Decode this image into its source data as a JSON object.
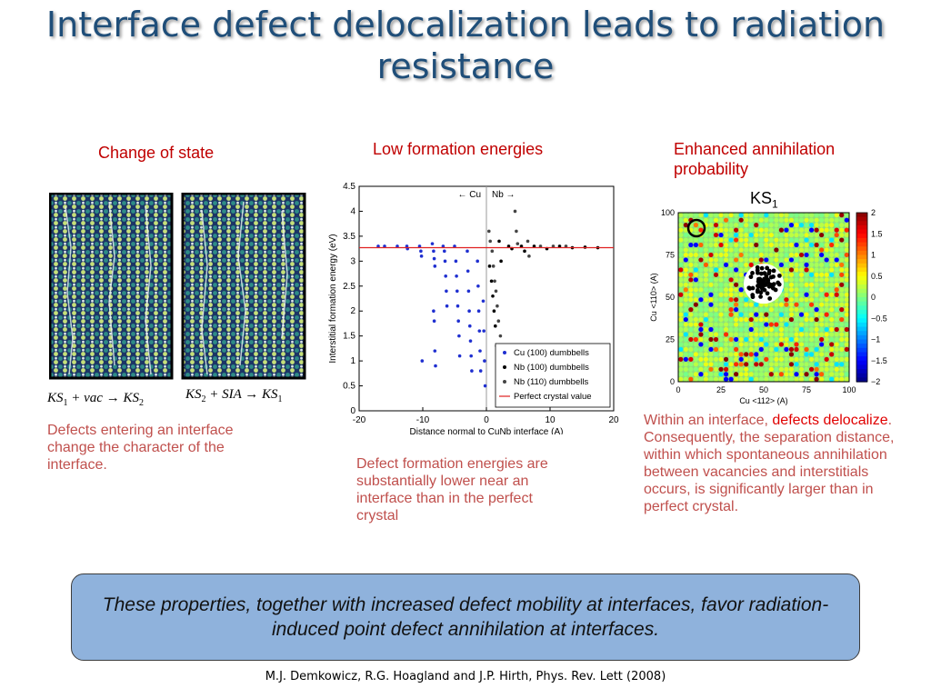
{
  "title": "Interface defect delocalization leads to radiation resistance",
  "columns": {
    "left": {
      "heading": "Change of state",
      "eq1": {
        "a": "KS",
        "a_sub": "1",
        "op1": " + ",
        "b": "vac",
        "arrow": " → ",
        "c": "KS",
        "c_sub": "2"
      },
      "eq2": {
        "a": "KS",
        "a_sub": "2",
        "op1": " + ",
        "b": "SIA",
        "arrow": " → ",
        "c": "KS",
        "c_sub": "1"
      },
      "caption": "Defects entering an interface change the character of the interface."
    },
    "middle": {
      "heading": "Low formation energies",
      "caption": "Defect formation energies are substantially lower near an interface than in the perfect crystal"
    },
    "right": {
      "heading_line1": "Enhanced annihilation",
      "heading_line2": "probability",
      "ks_label": "KS",
      "ks_sub": "1",
      "caption_part1": "Within an interface, ",
      "caption_highlight": "defects delocalize",
      "caption_part2": ". Consequently, the separation distance, within which spontaneous annihilation between vacancies and interstitials occurs, is significantly larger than in perfect crystal."
    }
  },
  "chart_data": {
    "type": "scatter",
    "xlabel": "Distance normal to CuNb interface (A)",
    "ylabel": "Interstitial formation energy (eV)",
    "xlim": [
      -20,
      20
    ],
    "ylim": [
      0,
      4.5
    ],
    "xticks": [
      "-20",
      "-10",
      "0",
      "10",
      "20"
    ],
    "yticks": [
      "0",
      "0.5",
      "1",
      "1.5",
      "2",
      "2.5",
      "3",
      "3.5",
      "4",
      "4.5"
    ],
    "region_labels": [
      "← Cu",
      "Nb →"
    ],
    "perfect_crystal_value": 3.27,
    "legend_position": "bottom-right",
    "series": [
      {
        "name": "Cu (100) dumbbells",
        "color": "#1f2fd0",
        "values": [
          [
            -17,
            3.3
          ],
          [
            -16,
            3.3
          ],
          [
            -14,
            3.3
          ],
          [
            -12.5,
            3.3
          ],
          [
            -12.4,
            3.25
          ],
          [
            -10.5,
            3.3
          ],
          [
            -10.3,
            3.2
          ],
          [
            -10.2,
            3.1
          ],
          [
            -8.5,
            3.35
          ],
          [
            -8.3,
            3.2
          ],
          [
            -8.2,
            3.05
          ],
          [
            -8.1,
            2.9
          ],
          [
            -6.8,
            3.3
          ],
          [
            -6.6,
            3.2
          ],
          [
            -6.5,
            3.0
          ],
          [
            -6.4,
            2.7
          ],
          [
            -6.3,
            2.4
          ],
          [
            -6.2,
            2.1
          ],
          [
            -5,
            3.3
          ],
          [
            -4.8,
            3.0
          ],
          [
            -4.7,
            2.7
          ],
          [
            -4.6,
            2.4
          ],
          [
            -4.5,
            2.1
          ],
          [
            -4.4,
            1.8
          ],
          [
            -4.3,
            1.5
          ],
          [
            -4.2,
            1.1
          ],
          [
            -3,
            3.2
          ],
          [
            -2.9,
            2.8
          ],
          [
            -2.8,
            2.4
          ],
          [
            -2.7,
            2.0
          ],
          [
            -2.6,
            1.7
          ],
          [
            -2.5,
            1.4
          ],
          [
            -2.4,
            1.1
          ],
          [
            -2.3,
            0.8
          ],
          [
            -1.4,
            3.0
          ],
          [
            -1.3,
            2.5
          ],
          [
            -1.2,
            2.0
          ],
          [
            -1.1,
            1.6
          ],
          [
            -1.0,
            1.2
          ],
          [
            -0.9,
            0.8
          ],
          [
            -0.5,
            2.2
          ],
          [
            -0.4,
            1.6
          ],
          [
            -0.3,
            1.0
          ],
          [
            -0.2,
            0.5
          ],
          [
            -8.3,
            2.0
          ],
          [
            -8.2,
            1.8
          ],
          [
            -8.1,
            1.2
          ],
          [
            -10.1,
            1.0
          ],
          [
            -8.0,
            0.9
          ]
        ]
      },
      {
        "name": "Nb (100) dumbbells",
        "color": "#000000",
        "values": [
          [
            0.5,
            2.9
          ],
          [
            0.8,
            2.6
          ],
          [
            1.0,
            2.3
          ],
          [
            1.2,
            2.0
          ],
          [
            1.4,
            1.7
          ],
          [
            1.6,
            1.3
          ],
          [
            2.0,
            3.4
          ],
          [
            2.3,
            3.0
          ],
          [
            3.5,
            3.3
          ],
          [
            4.0,
            3.25
          ],
          [
            5.5,
            3.3
          ],
          [
            6.0,
            3.2
          ],
          [
            7.5,
            3.3
          ],
          [
            9.5,
            3.25
          ],
          [
            11.5,
            3.3
          ],
          [
            13.5,
            3.27
          ],
          [
            15.5,
            3.28
          ],
          [
            17.5,
            3.27
          ]
        ]
      },
      {
        "name": "Nb (110) dumbbells",
        "color": "#444444",
        "values": [
          [
            0.4,
            3.6
          ],
          [
            0.6,
            3.4
          ],
          [
            0.9,
            3.2
          ],
          [
            1.1,
            2.9
          ],
          [
            1.3,
            2.6
          ],
          [
            1.5,
            2.4
          ],
          [
            1.7,
            2.1
          ],
          [
            1.9,
            1.8
          ],
          [
            2.2,
            1.5
          ],
          [
            1.8,
            1.1
          ],
          [
            2.0,
            1.0
          ],
          [
            4.5,
            4.0
          ],
          [
            4.7,
            3.6
          ],
          [
            4.9,
            3.35
          ],
          [
            6.5,
            3.4
          ],
          [
            6.7,
            3.1
          ],
          [
            8.5,
            3.3
          ],
          [
            10.5,
            3.3
          ],
          [
            12.5,
            3.3
          ]
        ]
      },
      {
        "name": "Perfect crystal value",
        "color": "#e02020",
        "values": [
          [
            -20,
            3.27
          ],
          [
            20,
            3.27
          ]
        ]
      }
    ]
  },
  "heatmap": {
    "xlabel": "Cu <112> (A)",
    "ylabel": "Cu <110> (A)",
    "xticks": [
      "0",
      "25",
      "50",
      "75",
      "100"
    ],
    "yticks": [
      "0",
      "25",
      "50",
      "75",
      "100"
    ],
    "colorbar_ticks": [
      "2",
      "1.5",
      "1",
      "0.5",
      "0",
      "−0.5",
      "−1",
      "−1.5",
      "−2"
    ]
  },
  "banner": "These properties, together with increased defect mobility at interfaces, favor radiation-induced point defect annihilation at interfaces.",
  "reference": "M.J. Demkowicz, R.G. Hoagland and J.P. Hirth, Phys. Rev. Lett (2008)"
}
